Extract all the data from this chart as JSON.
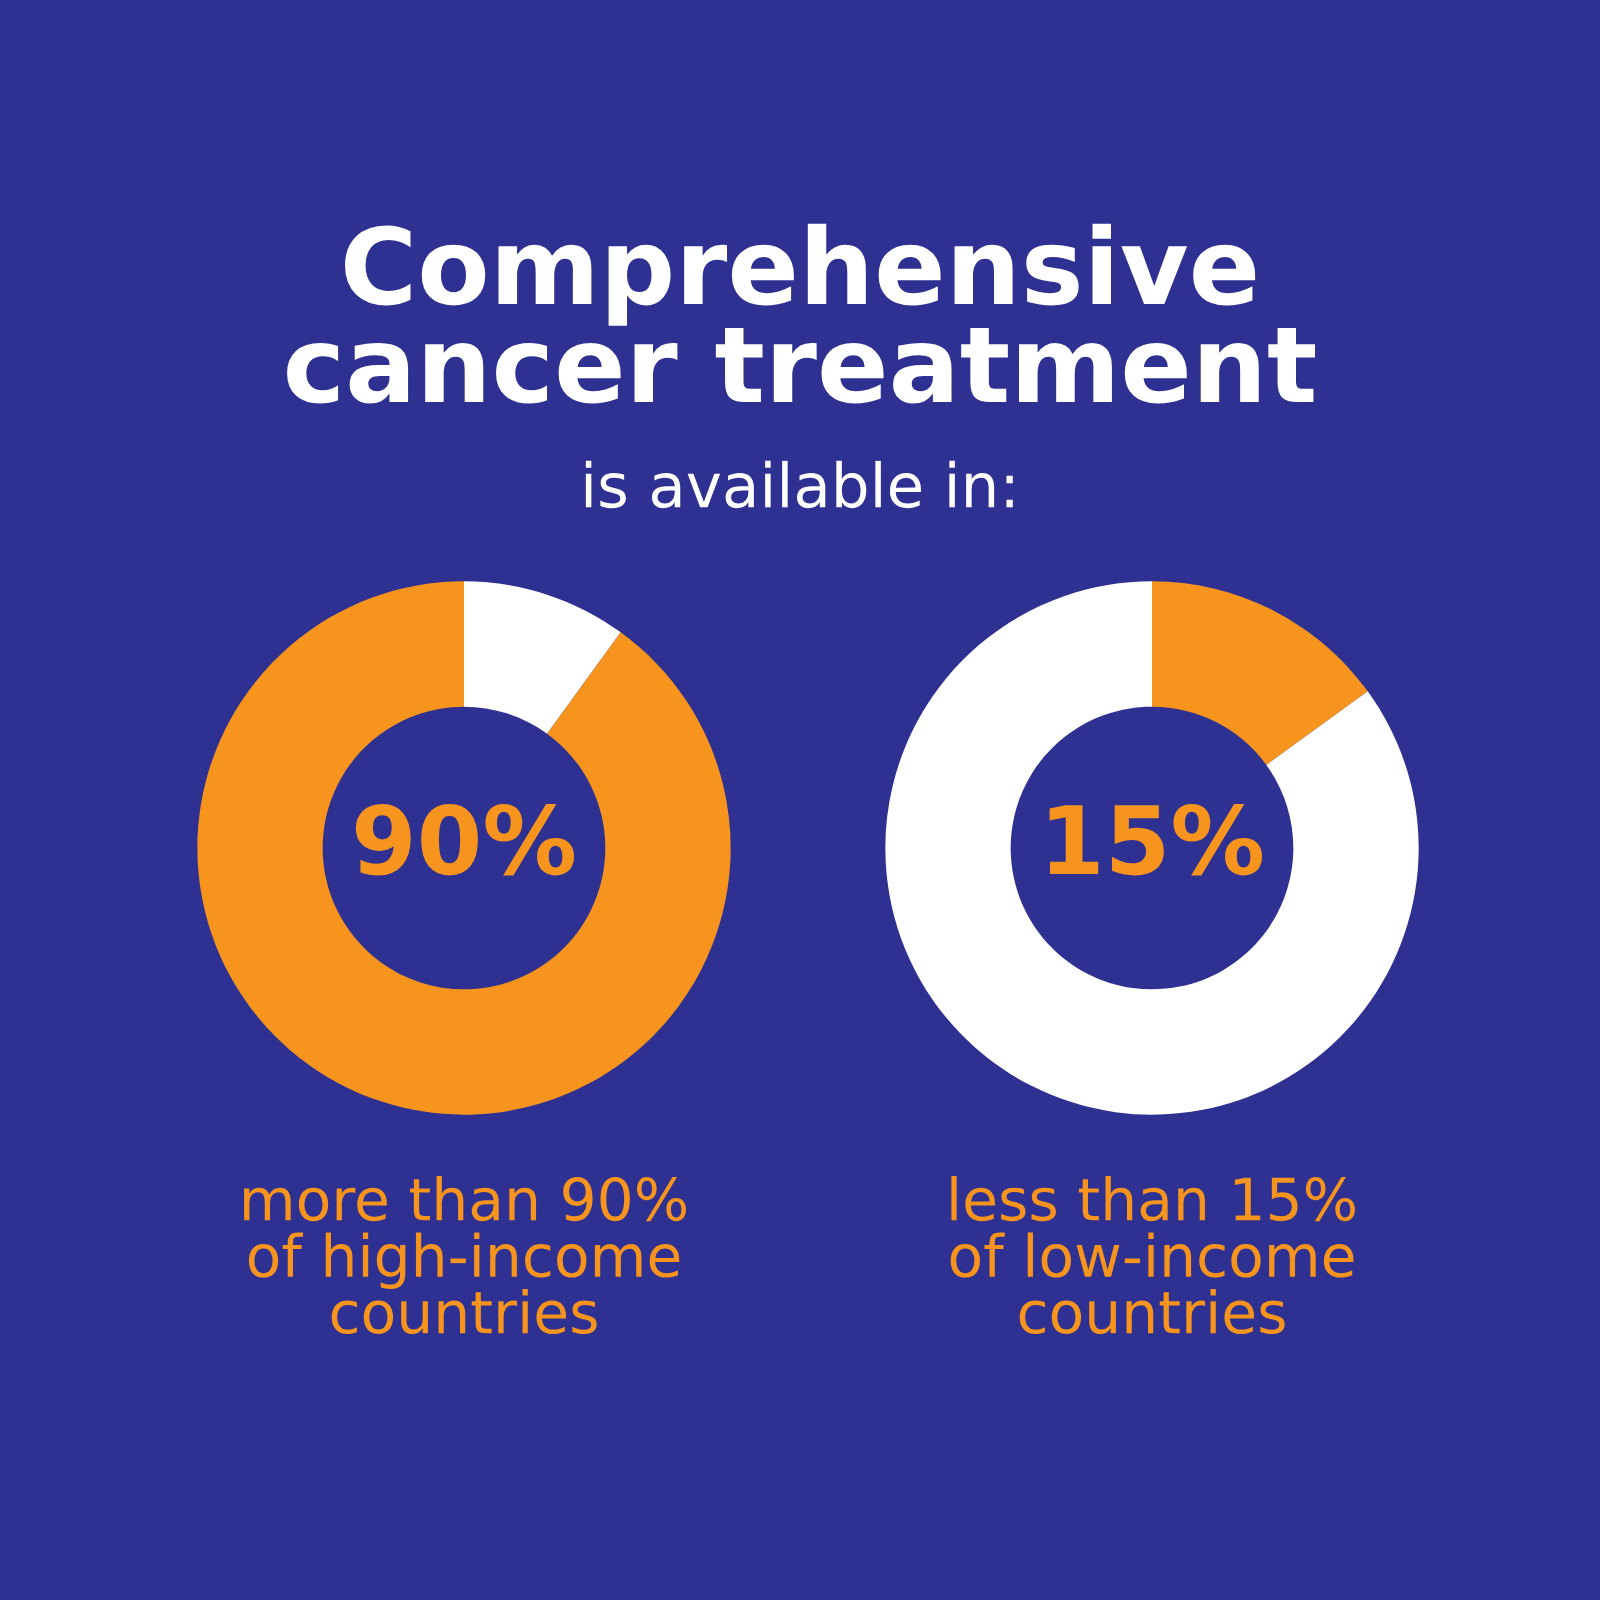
{
  "chart_data": [
    {
      "type": "donut",
      "title": "Comprehensive\ncancer treatment",
      "subtitle": "is available in:",
      "categories": [
        null,
        null
      ],
      "values": [
        10,
        90
      ],
      "colors": [
        "#ffffff",
        "#f7941d"
      ],
      "annotations": [
        "90%",
        "more than 90%\nof high-income\ncountries"
      ]
    },
    {
      "type": "donut",
      "categories": [
        null,
        null
      ],
      "values": [
        15,
        85
      ],
      "colors": [
        "#f7941d",
        "#ffffff"
      ],
      "annotations": [
        "15%",
        "less than 15%\nof low-income\ncountries"
      ]
    }
  ]
}
